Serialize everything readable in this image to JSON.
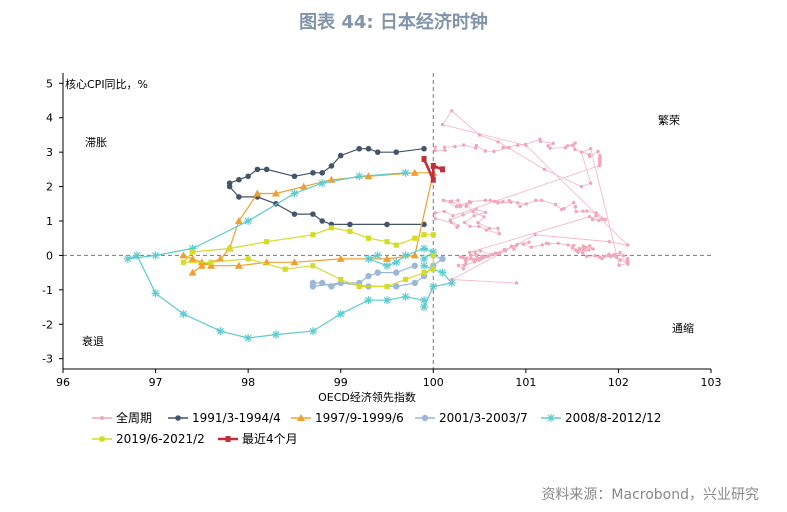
{
  "title": "图表 44: 日本经济时钟",
  "source": "资料来源：Macrobond，兴业研究",
  "colors": {
    "all": "#f2a6ba",
    "s1991": "#44546a",
    "s1997": "#f0a030",
    "s2001": "#9db8d6",
    "s2008": "#5ecbcf",
    "s2019": "#d4dc2a",
    "latest": "#c0303a"
  },
  "chart_data": {
    "type": "scatter",
    "xlabel": "OECD经济领先指数",
    "ylabel": "核心CPI同比，%",
    "xlim": [
      96,
      103
    ],
    "ylim": [
      -3.3,
      5.3
    ],
    "xticks": [
      "96",
      "97",
      "98",
      "99",
      "100",
      "101",
      "102",
      "103"
    ],
    "yticks": [
      "5",
      "4",
      "3",
      "2",
      "1",
      "0",
      "-1",
      "-2",
      "-3"
    ],
    "reference_lines": {
      "x": 100,
      "y": 0
    },
    "quadrant_labels": [
      "滞胀",
      "繁荣",
      "衰退",
      "通缩"
    ],
    "legend": [
      "全周期",
      "1991/3-1994/4",
      "1997/9-1999/6",
      "2001/3-2003/7",
      "2008/8-2012/12",
      "2019/6-2021/2",
      "最近4个月"
    ],
    "series": [
      {
        "name": "1991/3-1994/4",
        "color_key": "s1991",
        "points": [
          [
            99.9,
            3.1
          ],
          [
            99.6,
            3.0
          ],
          [
            99.4,
            3.0
          ],
          [
            99.3,
            3.1
          ],
          [
            99.2,
            3.1
          ],
          [
            99.0,
            2.9
          ],
          [
            98.9,
            2.6
          ],
          [
            98.8,
            2.4
          ],
          [
            98.7,
            2.4
          ],
          [
            98.5,
            2.3
          ],
          [
            98.2,
            2.5
          ],
          [
            98.1,
            2.5
          ],
          [
            98.0,
            2.3
          ],
          [
            97.9,
            2.2
          ],
          [
            97.8,
            2.1
          ],
          [
            97.8,
            2.0
          ],
          [
            97.9,
            1.7
          ],
          [
            98.1,
            1.7
          ],
          [
            98.3,
            1.5
          ],
          [
            98.5,
            1.2
          ],
          [
            98.7,
            1.2
          ],
          [
            98.8,
            1.0
          ],
          [
            98.9,
            0.9
          ],
          [
            99.1,
            0.9
          ],
          [
            99.5,
            0.9
          ],
          [
            99.9,
            0.9
          ]
        ]
      },
      {
        "name": "1997/9-1999/6",
        "color_key": "s1997",
        "points": [
          [
            97.4,
            -0.5
          ],
          [
            97.5,
            -0.3
          ],
          [
            97.7,
            -0.1
          ],
          [
            97.8,
            0.2
          ],
          [
            97.9,
            1.0
          ],
          [
            98.1,
            1.8
          ],
          [
            98.3,
            1.8
          ],
          [
            98.6,
            2.0
          ],
          [
            98.9,
            2.2
          ],
          [
            99.3,
            2.3
          ],
          [
            99.8,
            2.4
          ],
          [
            100.0,
            2.4
          ],
          [
            99.8,
            0.0
          ],
          [
            99.5,
            -0.1
          ],
          [
            99.0,
            -0.1
          ],
          [
            98.5,
            -0.2
          ],
          [
            98.2,
            -0.2
          ],
          [
            97.9,
            -0.3
          ],
          [
            97.6,
            -0.3
          ],
          [
            97.4,
            -0.1
          ],
          [
            97.3,
            0.0
          ],
          [
            97.5,
            -0.2
          ]
        ]
      },
      {
        "name": "2001/3-2003/7",
        "color_key": "s2001",
        "points": [
          [
            99.8,
            -0.3
          ],
          [
            99.6,
            -0.5
          ],
          [
            99.4,
            -0.5
          ],
          [
            99.3,
            -0.6
          ],
          [
            99.2,
            -0.8
          ],
          [
            99.0,
            -0.8
          ],
          [
            98.9,
            -0.9
          ],
          [
            98.8,
            -0.8
          ],
          [
            98.7,
            -0.8
          ],
          [
            98.7,
            -0.9
          ],
          [
            99.0,
            -0.8
          ],
          [
            99.3,
            -0.9
          ],
          [
            99.6,
            -0.9
          ],
          [
            99.8,
            -0.8
          ],
          [
            99.9,
            -0.6
          ],
          [
            100.0,
            -0.3
          ],
          [
            100.1,
            -0.1
          ],
          [
            100.0,
            0.0
          ]
        ]
      },
      {
        "name": "2008/8-2012/12",
        "color_key": "s2008",
        "points": [
          [
            99.7,
            2.4
          ],
          [
            99.2,
            2.3
          ],
          [
            98.8,
            2.1
          ],
          [
            98.5,
            1.8
          ],
          [
            98.0,
            1.0
          ],
          [
            97.4,
            0.2
          ],
          [
            97.0,
            0.0
          ],
          [
            96.7,
            -0.1
          ],
          [
            96.8,
            0.0
          ],
          [
            97.0,
            -1.1
          ],
          [
            97.3,
            -1.7
          ],
          [
            97.7,
            -2.2
          ],
          [
            98.0,
            -2.4
          ],
          [
            98.3,
            -2.3
          ],
          [
            98.7,
            -2.2
          ],
          [
            99.0,
            -1.7
          ],
          [
            99.3,
            -1.3
          ],
          [
            99.5,
            -1.3
          ],
          [
            99.7,
            -1.2
          ],
          [
            99.9,
            -1.3
          ],
          [
            99.9,
            -1.5
          ],
          [
            100.0,
            -0.9
          ],
          [
            100.2,
            -0.8
          ],
          [
            100.1,
            -0.5
          ],
          [
            99.9,
            -0.3
          ],
          [
            99.9,
            -0.1
          ],
          [
            100.0,
            0.1
          ],
          [
            99.9,
            0.2
          ],
          [
            99.7,
            0.0
          ],
          [
            99.6,
            -0.2
          ],
          [
            99.5,
            -0.3
          ],
          [
            99.3,
            -0.1
          ],
          [
            99.4,
            0.0
          ]
        ]
      },
      {
        "name": "2019/6-2021/2",
        "color_key": "s2019",
        "points": [
          [
            100.0,
            0.6
          ],
          [
            99.9,
            0.6
          ],
          [
            99.8,
            0.5
          ],
          [
            99.6,
            0.3
          ],
          [
            99.5,
            0.4
          ],
          [
            99.3,
            0.5
          ],
          [
            99.1,
            0.7
          ],
          [
            98.9,
            0.8
          ],
          [
            98.7,
            0.6
          ],
          [
            98.2,
            0.4
          ],
          [
            97.8,
            0.2
          ],
          [
            97.4,
            0.1
          ],
          [
            97.3,
            -0.2
          ],
          [
            97.6,
            -0.2
          ],
          [
            98.0,
            -0.1
          ],
          [
            98.4,
            -0.4
          ],
          [
            98.7,
            -0.3
          ],
          [
            99.0,
            -0.7
          ],
          [
            99.2,
            -0.9
          ],
          [
            99.5,
            -0.9
          ],
          [
            99.7,
            -0.7
          ],
          [
            99.9,
            -0.5
          ],
          [
            100.0,
            -0.4
          ],
          [
            100.0,
            0.0
          ]
        ]
      },
      {
        "name": "最近4个月",
        "color_key": "latest",
        "points": [
          [
            99.9,
            2.8
          ],
          [
            100.0,
            2.2
          ],
          [
            100.0,
            2.6
          ],
          [
            100.1,
            2.5
          ]
        ]
      }
    ]
  }
}
